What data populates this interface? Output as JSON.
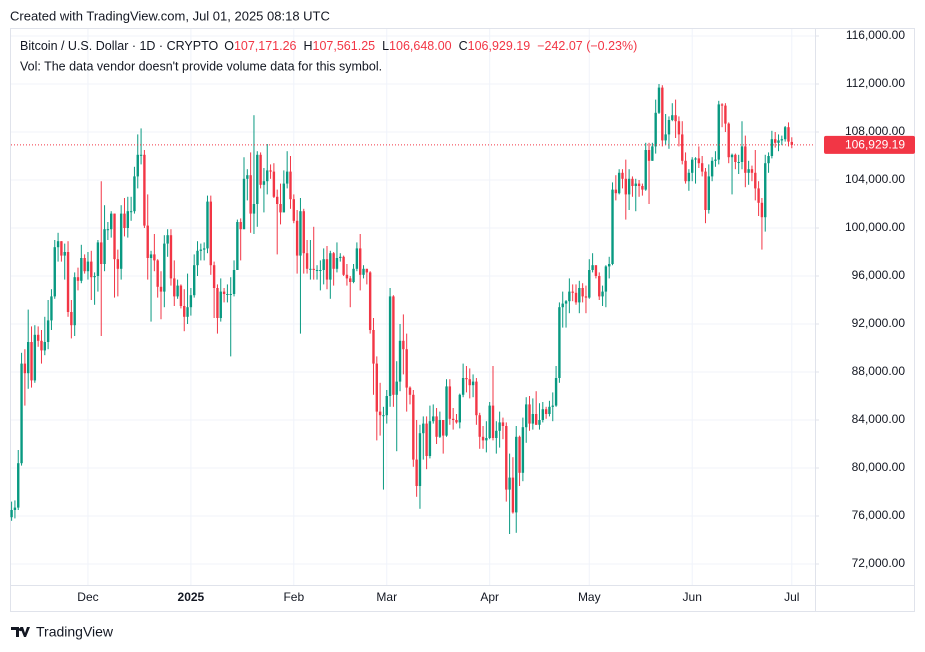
{
  "created": "Created with TradingView.com, Jul 01, 2025 08:18 UTC",
  "footer": {
    "brand": "TradingView"
  },
  "chart_data": {
    "type": "candlestick",
    "legend": {
      "symbol": "Bitcoin / U.S. Dollar · 1D · CRYPTO",
      "fields": [
        {
          "label": "O",
          "value": "107,171.26"
        },
        {
          "label": "H",
          "value": "107,561.25"
        },
        {
          "label": "L",
          "value": "106,648.00"
        },
        {
          "label": "C",
          "value": "106,929.19"
        }
      ],
      "change": "−242.07 (−0.23%)",
      "volume_note": "Vol: The data vendor doesn't provide volume data for this symbol."
    },
    "last_value_label": "106,929.19",
    "up_color": "#089981",
    "down_color": "#f23645",
    "grid": true,
    "ylim": [
      70250,
      116500
    ],
    "yticks": [
      {
        "value": 72000,
        "label": "72,000.00"
      },
      {
        "value": 76000,
        "label": "76,000.00"
      },
      {
        "value": 80000,
        "label": "80,000.00"
      },
      {
        "value": 84000,
        "label": "84,000.00"
      },
      {
        "value": 88000,
        "label": "88,000.00"
      },
      {
        "value": 92000,
        "label": "92,000.00"
      },
      {
        "value": 96000,
        "label": "96,000.00"
      },
      {
        "value": 100000,
        "label": "100,000.00"
      },
      {
        "value": 104000,
        "label": "104,000.00"
      },
      {
        "value": 108000,
        "label": "108,000.00"
      },
      {
        "value": 112000,
        "label": "112,000.00"
      },
      {
        "value": 116000,
        "label": "116,000.00"
      }
    ],
    "categories": [
      null,
      null,
      null,
      null,
      null,
      null,
      null,
      null,
      null,
      null,
      null,
      null,
      null,
      null,
      null,
      null,
      null,
      null,
      null,
      null,
      null,
      null,
      null,
      "Dec",
      null,
      null,
      null,
      null,
      null,
      null,
      null,
      null,
      null,
      null,
      null,
      null,
      null,
      null,
      null,
      null,
      null,
      null,
      null,
      null,
      null,
      null,
      null,
      null,
      null,
      null,
      null,
      null,
      null,
      null,
      "2025",
      null,
      null,
      null,
      null,
      null,
      null,
      null,
      null,
      null,
      null,
      null,
      null,
      null,
      null,
      null,
      null,
      null,
      null,
      null,
      null,
      null,
      null,
      null,
      null,
      null,
      null,
      null,
      null,
      null,
      null,
      "Feb",
      null,
      null,
      null,
      null,
      null,
      null,
      null,
      null,
      null,
      null,
      null,
      null,
      null,
      null,
      null,
      null,
      null,
      null,
      null,
      null,
      null,
      null,
      null,
      null,
      null,
      null,
      null,
      "Mar",
      null,
      null,
      null,
      null,
      null,
      null,
      null,
      null,
      null,
      null,
      null,
      null,
      null,
      null,
      null,
      null,
      null,
      null,
      null,
      null,
      null,
      null,
      null,
      null,
      null,
      null,
      null,
      null,
      null,
      null,
      "Apr",
      null,
      null,
      null,
      null,
      null,
      null,
      null,
      null,
      null,
      null,
      null,
      null,
      null,
      null,
      null,
      null,
      null,
      null,
      null,
      null,
      null,
      null,
      null,
      null,
      null,
      null,
      null,
      null,
      null,
      "May",
      null,
      null,
      null,
      null,
      null,
      null,
      null,
      null,
      null,
      null,
      null,
      null,
      null,
      null,
      null,
      null,
      null,
      null,
      null,
      null,
      null,
      null,
      null,
      null,
      null,
      null,
      null,
      null,
      null,
      null,
      "Jun",
      null,
      null,
      null,
      null,
      null,
      null,
      null,
      null,
      null,
      null,
      null,
      null,
      null,
      null,
      null,
      null,
      null,
      null,
      null,
      null,
      null,
      null,
      null,
      null,
      null,
      null,
      null,
      null,
      null,
      "Jul"
    ],
    "open": [
      75900,
      76500,
      76700,
      80400,
      88700,
      87900,
      90500,
      87300,
      91100,
      90600,
      89800,
      90500,
      92300,
      94300,
      98400,
      98900,
      97700,
      98000,
      93000,
      91900,
      95900,
      95600,
      97500,
      96400,
      97200,
      95900,
      96000,
      98800,
      97000,
      99900,
      99900,
      101200,
      97400,
      96600,
      101200,
      100000,
      101400,
      101400,
      104300,
      106100,
      106100,
      100200,
      97500,
      97800,
      97300,
      95100,
      94700,
      98700,
      99400,
      95800,
      94300,
      95200,
      93500,
      92600,
      93400,
      94400,
      96900,
      98100,
      98200,
      98300,
      102200,
      96900,
      95000,
      92500,
      94700,
      94500,
      94500,
      94500,
      96500,
      100500,
      99900,
      104100,
      104400,
      101200,
      102000,
      106100,
      103600,
      103900,
      104800,
      104700,
      102600,
      102000,
      101300,
      103700,
      104700,
      102400,
      100600,
      97700,
      101400,
      97900,
      96600,
      96600,
      96500,
      96500,
      96500,
      97400,
      95700,
      97900,
      96600,
      97500,
      97600,
      96100,
      95800,
      95500,
      96600,
      98300,
      96100,
      96600,
      96300,
      91500,
      88700,
      84700,
      84400,
      84400,
      86000,
      94300,
      86100,
      87200,
      90600,
      89900,
      86700,
      86100,
      80700,
      78500,
      82900,
      83700,
      81000,
      83900,
      84300,
      82600,
      84000,
      82700,
      86800,
      84100,
      84000,
      83800,
      86100,
      87500,
      87400,
      86900,
      87200,
      84400,
      82600,
      82300,
      82500,
      85200,
      82500,
      83100,
      83800,
      83500,
      78200,
      79200,
      76300,
      82600,
      79600,
      83400,
      85300,
      83700,
      84500,
      83600,
      84000,
      84900,
      84500,
      85100,
      85200,
      87500,
      93400,
      93700,
      93900,
      94700,
      94600,
      93800,
      95000,
      94300,
      94200,
      96500,
      96900,
      96000,
      94300,
      94700,
      96800,
      97000,
      103200,
      102900,
      104600,
      104100,
      102800,
      104100,
      103500,
      103700,
      103500,
      103200,
      106500,
      105600,
      106800,
      109600,
      111700,
      107300,
      107800,
      109000,
      109400,
      108900,
      107800,
      105600,
      103900,
      104600,
      105700,
      105800,
      105400,
      104700,
      101500,
      104300,
      105600,
      105700,
      110300,
      110200,
      108700,
      105900,
      106100,
      105500,
      105500,
      106800,
      104600,
      104900,
      104600,
      103300,
      102100,
      100900,
      105400,
      106000,
      107400,
      107100,
      107300,
      107400,
      108400,
      107171.26
    ],
    "high": [
      77200,
      77300,
      81500,
      89600,
      89900,
      93200,
      91800,
      91900,
      91800,
      91500,
      92600,
      94000,
      94900,
      99000,
      99600,
      98900,
      98700,
      98900,
      94000,
      96300,
      96700,
      98600,
      97800,
      98000,
      98100,
      96300,
      99000,
      103900,
      101900,
      100500,
      101400,
      101200,
      98200,
      101900,
      102500,
      102600,
      102600,
      105100,
      107800,
      108300,
      106500,
      102800,
      98100,
      99500,
      97400,
      96400,
      99400,
      99900,
      99900,
      97300,
      95700,
      95300,
      94900,
      96200,
      95000,
      97800,
      98900,
      98700,
      98800,
      102700,
      102700,
      97200,
      95300,
      95800,
      95000,
      95300,
      95900,
      97300,
      100700,
      100800,
      105900,
      104900,
      106300,
      109400,
      106400,
      106300,
      105000,
      107000,
      105300,
      105400,
      103200,
      103700,
      104800,
      106400,
      106000,
      102800,
      101500,
      102500,
      101600,
      99000,
      99000,
      100100,
      96900,
      97300,
      98300,
      98500,
      98100,
      98000,
      98800,
      97900,
      97700,
      97000,
      96000,
      97000,
      98800,
      99500,
      96900,
      96600,
      96400,
      92500,
      89300,
      87100,
      85100,
      86500,
      95000,
      94400,
      88900,
      92000,
      92800,
      91200,
      86800,
      86500,
      84000,
      83600,
      84300,
      84300,
      85200,
      85300,
      85000,
      84700,
      84000,
      87400,
      87400,
      85000,
      84500,
      86200,
      88700,
      88500,
      88300,
      87800,
      87500,
      84600,
      83500,
      83900,
      85500,
      88500,
      83900,
      84700,
      84200,
      83800,
      81200,
      80900,
      83500,
      82700,
      84200,
      85900,
      86000,
      85800,
      86400,
      85400,
      85500,
      85100,
      85600,
      86300,
      88500,
      93800,
      94700,
      94000,
      95800,
      95300,
      95300,
      95600,
      95400,
      95200,
      97400,
      97900,
      96900,
      96300,
      95200,
      96900,
      97600,
      103800,
      104400,
      104900,
      104900,
      105700,
      104900,
      104300,
      104100,
      104000,
      103700,
      107100,
      107100,
      107100,
      110700,
      112000,
      111900,
      109500,
      109300,
      110400,
      110700,
      109300,
      108900,
      106300,
      104900,
      105900,
      105900,
      106800,
      106000,
      105000,
      105300,
      105900,
      106400,
      110600,
      110400,
      110400,
      108800,
      106200,
      106200,
      106100,
      108900,
      107700,
      105600,
      105200,
      106500,
      103900,
      102500,
      106100,
      106300,
      108100,
      108000,
      107800,
      107700,
      108500,
      108800,
      107561.25
    ],
    "low": [
      75600,
      75800,
      76500,
      80200,
      85200,
      86600,
      86700,
      87100,
      90100,
      88700,
      89400,
      89900,
      91500,
      94100,
      97200,
      97200,
      95700,
      92600,
      90800,
      91000,
      94800,
      95400,
      96200,
      95700,
      94000,
      93600,
      94700,
      91000,
      96400,
      99000,
      99200,
      94200,
      94300,
      95700,
      99300,
      99200,
      100600,
      101200,
      103300,
      105300,
      100000,
      95700,
      92200,
      96400,
      94200,
      92400,
      93400,
      97600,
      95200,
      93500,
      94100,
      93300,
      91400,
      92000,
      92700,
      94200,
      96000,
      97300,
      97300,
      97900,
      96100,
      92500,
      91200,
      92200,
      93800,
      93800,
      89300,
      94300,
      96500,
      97300,
      99900,
      102300,
      99600,
      99500,
      100100,
      103300,
      101300,
      102800,
      104100,
      102500,
      97800,
      100300,
      101300,
      103300,
      101600,
      100400,
      96200,
      91200,
      96200,
      96200,
      95700,
      95700,
      95700,
      94800,
      95300,
      94900,
      94100,
      95200,
      96300,
      97200,
      96000,
      95200,
      93400,
      95400,
      96400,
      94800,
      95800,
      95300,
      91200,
      86100,
      82300,
      82700,
      78200,
      83700,
      85100,
      85100,
      81400,
      86400,
      87800,
      84700,
      85300,
      80100,
      77600,
      76600,
      80700,
      79900,
      80800,
      83700,
      82000,
      82500,
      81200,
      82600,
      83600,
      83200,
      83700,
      83300,
      85900,
      86300,
      85800,
      85900,
      83600,
      81600,
      81600,
      81300,
      82400,
      82300,
      81200,
      81700,
      82400,
      77200,
      74500,
      76200,
      74600,
      78500,
      78900,
      82100,
      83100,
      83200,
      83600,
      83200,
      83800,
      84100,
      84300,
      83900,
      85100,
      87100,
      91700,
      91700,
      92900,
      93900,
      93600,
      92900,
      93800,
      92900,
      94100,
      96300,
      95800,
      94000,
      93500,
      93400,
      95800,
      96900,
      102300,
      102800,
      103300,
      100700,
      101500,
      102600,
      101400,
      102600,
      102700,
      103100,
      102000,
      105600,
      106200,
      109500,
      106800,
      106900,
      106600,
      108900,
      107500,
      106800,
      105300,
      103700,
      103100,
      103900,
      103700,
      105000,
      104300,
      100400,
      101200,
      103900,
      105100,
      105300,
      108400,
      108000,
      105400,
      102800,
      104900,
      104500,
      104900,
      103400,
      103600,
      103900,
      102300,
      101000,
      98200,
      99700,
      104600,
      105800,
      106700,
      106400,
      106900,
      107200,
      106800,
      106648
    ],
    "close": [
      76500,
      76700,
      80400,
      88700,
      87900,
      90500,
      87300,
      91100,
      90600,
      89800,
      90500,
      92300,
      94300,
      98400,
      98900,
      97700,
      98000,
      93000,
      91900,
      95900,
      95600,
      97500,
      96400,
      97200,
      95900,
      96000,
      98800,
      97000,
      99900,
      99900,
      101200,
      97400,
      96600,
      101200,
      100000,
      101400,
      101400,
      104300,
      106100,
      106100,
      100200,
      97500,
      97800,
      97300,
      95100,
      94700,
      98700,
      99400,
      95800,
      94300,
      95200,
      93500,
      92600,
      93400,
      94400,
      96900,
      98100,
      98200,
      98300,
      102200,
      96900,
      95000,
      92500,
      94700,
      94500,
      94500,
      94500,
      96500,
      100500,
      99900,
      104100,
      104400,
      101200,
      102000,
      106100,
      103600,
      103900,
      104800,
      104700,
      102600,
      102000,
      101300,
      103700,
      104700,
      102400,
      100600,
      97700,
      101400,
      97900,
      96600,
      96600,
      96500,
      96500,
      96500,
      97400,
      95700,
      97900,
      96600,
      97500,
      97600,
      96100,
      95800,
      95500,
      96600,
      98300,
      96100,
      96600,
      96300,
      91500,
      88700,
      84700,
      84400,
      84400,
      86000,
      94300,
      86100,
      87200,
      90600,
      89900,
      86700,
      86100,
      80700,
      78500,
      82900,
      83700,
      81000,
      83900,
      84300,
      82600,
      84000,
      82700,
      86800,
      84100,
      84000,
      83800,
      86100,
      87500,
      87400,
      86900,
      87200,
      84400,
      82600,
      82300,
      82500,
      85200,
      82500,
      83100,
      83800,
      83500,
      78200,
      79200,
      76300,
      82600,
      79600,
      83400,
      85300,
      83700,
      84500,
      83600,
      84000,
      84900,
      84500,
      85100,
      85200,
      87500,
      93400,
      93700,
      93900,
      94700,
      94600,
      93800,
      95000,
      94300,
      94200,
      96500,
      96900,
      96000,
      94300,
      94700,
      96800,
      97000,
      103200,
      102900,
      104600,
      104100,
      102800,
      104100,
      103500,
      103700,
      103500,
      103200,
      106500,
      105600,
      106800,
      109600,
      111700,
      107300,
      107800,
      109000,
      109400,
      108900,
      107800,
      105600,
      103900,
      104600,
      105700,
      105800,
      105400,
      104700,
      101500,
      104300,
      105600,
      105700,
      110300,
      110200,
      108700,
      105900,
      106100,
      105500,
      105500,
      106800,
      104600,
      104900,
      104600,
      103300,
      102100,
      100900,
      105400,
      106000,
      107400,
      107100,
      107300,
      107400,
      108400,
      107200,
      106929.19
    ]
  }
}
